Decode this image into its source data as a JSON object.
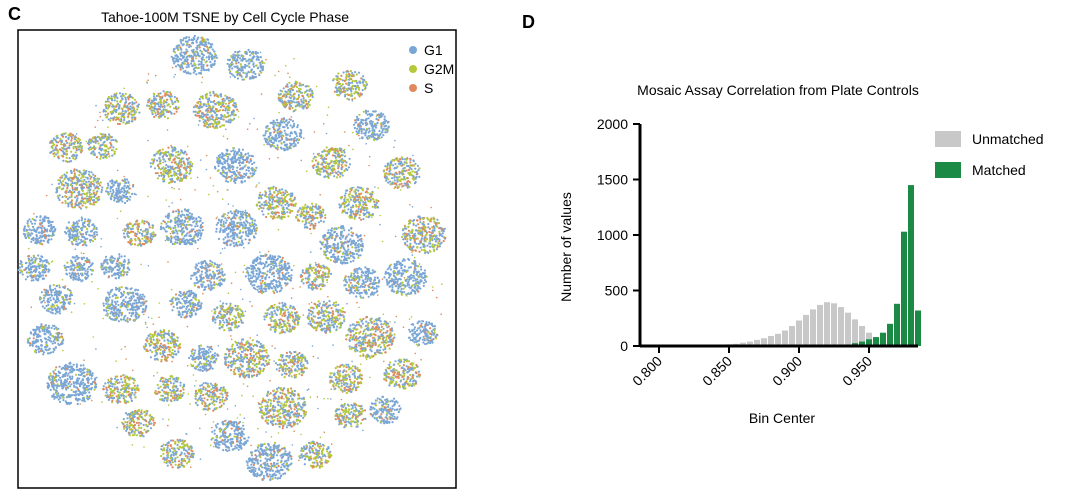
{
  "panels": {
    "c": {
      "letter": "C",
      "chart_data": {
        "type": "scatter",
        "title": "Tahoe-100M TSNE by Cell Cycle Phase",
        "xlabel": "",
        "ylabel": "",
        "legend": {
          "placement": "top-right"
        },
        "series": [
          {
            "name": "G1",
            "color": "#7aa6d6"
          },
          {
            "name": "G2M",
            "color": "#b5c93a"
          },
          {
            "name": "S",
            "color": "#e08a5c"
          }
        ],
        "grid": false
      }
    },
    "d": {
      "letter": "D",
      "chart_data": {
        "type": "bar",
        "title": "Mosaic Assay Correlation from Plate Controls",
        "xlabel": "Bin Center",
        "ylabel": "Number of values",
        "xlim": [
          0.795,
          0.985
        ],
        "ylim": [
          0,
          2000
        ],
        "xticks": [
          "0.800",
          "0.850",
          "0.900",
          "0.950"
        ],
        "yticks": [
          "0",
          "500",
          "1000",
          "1500",
          "2000"
        ],
        "grid": false,
        "legend": {
          "placement": "top-right"
        },
        "series": [
          {
            "name": "Unmatched",
            "color": "#c8c8c8",
            "x": [
              0.84,
              0.845,
              0.85,
              0.855,
              0.86,
              0.865,
              0.87,
              0.875,
              0.88,
              0.885,
              0.89,
              0.895,
              0.9,
              0.905,
              0.91,
              0.915,
              0.92,
              0.925,
              0.93,
              0.935,
              0.94,
              0.945,
              0.95,
              0.955,
              0.96,
              0.965
            ],
            "values": [
              5,
              10,
              15,
              20,
              30,
              40,
              55,
              70,
              90,
              110,
              140,
              180,
              230,
              280,
              330,
              370,
              395,
              385,
              350,
              300,
              240,
              180,
              120,
              70,
              35,
              15
            ]
          },
          {
            "name": "Matched",
            "color": "#1a8a44",
            "x": [
              0.935,
              0.94,
              0.945,
              0.95,
              0.955,
              0.96,
              0.965,
              0.97,
              0.975,
              0.98
            ],
            "values": [
              10,
              25,
              40,
              60,
              80,
              120,
              200,
              380,
              1030,
              1450
            ]
          }
        ],
        "extra_bar": {
          "x": 0.985,
          "value": 320
        }
      }
    }
  }
}
